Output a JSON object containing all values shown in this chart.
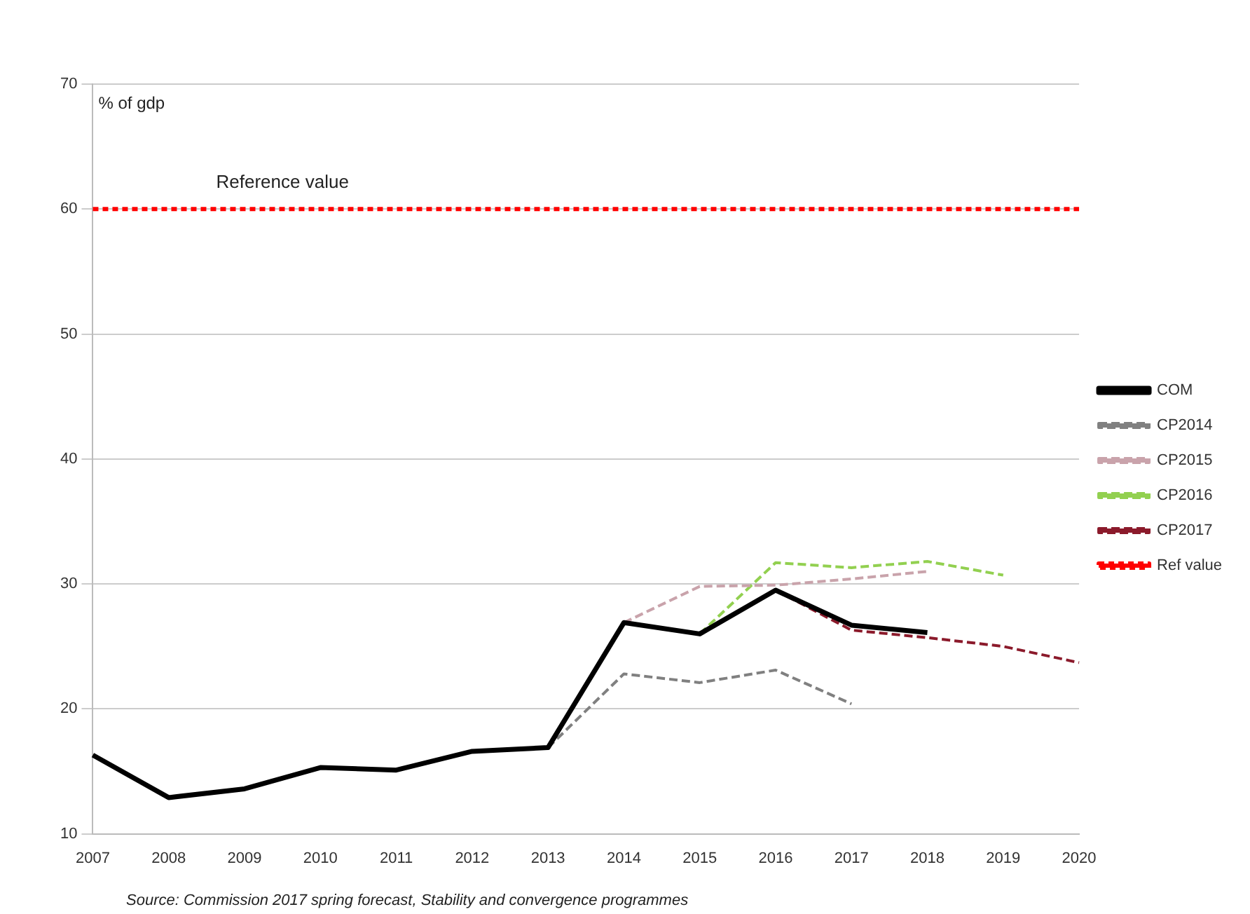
{
  "chart_data": {
    "type": "line",
    "ylabel": "% of gdp",
    "categories": [
      "2007",
      "2008",
      "2009",
      "2010",
      "2011",
      "2012",
      "2013",
      "2014",
      "2015",
      "2016",
      "2017",
      "2018",
      "2019",
      "2020"
    ],
    "series": [
      {
        "name": "COM",
        "color": "#000000",
        "line_style": "solid",
        "values": [
          16.3,
          12.9,
          13.6,
          15.3,
          15.1,
          16.6,
          16.9,
          26.9,
          26.0,
          29.5,
          26.7,
          26.1,
          null,
          null
        ]
      },
      {
        "name": "CP2014",
        "color": "#808080",
        "line_style": "dashed",
        "values": [
          null,
          null,
          null,
          null,
          null,
          null,
          16.9,
          22.8,
          22.1,
          23.1,
          20.4,
          null,
          null,
          null
        ]
      },
      {
        "name": "CP2015",
        "color": "#c9a3ab",
        "line_style": "dashed",
        "values": [
          null,
          null,
          null,
          null,
          null,
          null,
          null,
          26.9,
          29.8,
          29.9,
          30.4,
          31.0,
          null,
          null
        ]
      },
      {
        "name": "CP2016",
        "color": "#92d050",
        "line_style": "dashed",
        "values": [
          null,
          null,
          null,
          null,
          null,
          null,
          null,
          null,
          26.0,
          31.7,
          31.3,
          31.8,
          30.7,
          null
        ]
      },
      {
        "name": "CP2017",
        "color": "#8b1a2b",
        "line_style": "dashed",
        "values": [
          null,
          null,
          null,
          null,
          null,
          null,
          null,
          null,
          null,
          29.5,
          26.3,
          25.7,
          25.0,
          23.7
        ]
      },
      {
        "name": "Ref value",
        "color": "#ff0000",
        "line_style": "dotted",
        "values": [
          60,
          60,
          60,
          60,
          60,
          60,
          60,
          60,
          60,
          60,
          60,
          60,
          60,
          60
        ]
      }
    ],
    "ylim": [
      10,
      70
    ],
    "yticks": [
      10,
      20,
      30,
      40,
      50,
      60,
      70
    ],
    "grid": "y",
    "legend": "right",
    "marker": "none",
    "annotations": [
      {
        "text": "Reference value",
        "x": "2009",
        "y": 60
      },
      "Source: Commission 2017 spring forecast, Stability and convergence programmes"
    ]
  }
}
